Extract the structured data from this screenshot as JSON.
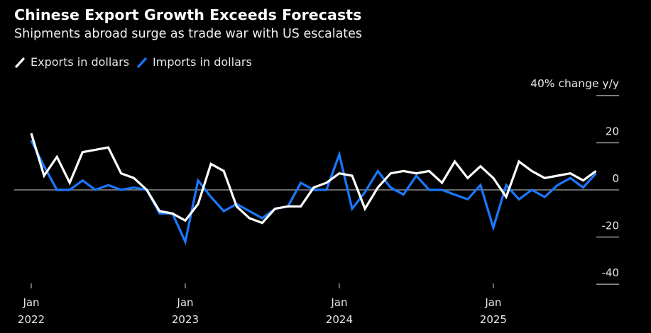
{
  "chart_data": {
    "type": "line",
    "title": "Chinese Export Growth Exceeds Forecasts",
    "subtitle": "Shipments abroad surge as trade war with US escalates",
    "ylabel": "40% change y/y",
    "xlabel": "",
    "ylim": [
      -40,
      40
    ],
    "yticks": [
      {
        "value": 40,
        "label": ""
      },
      {
        "value": 20,
        "label": "20"
      },
      {
        "value": 0,
        "label": "0"
      },
      {
        "value": -20,
        "label": "-20"
      },
      {
        "value": -40,
        "label": "-40"
      }
    ],
    "xticks": [
      {
        "month_index": 0,
        "line1": "Jan",
        "line2": "2022"
      },
      {
        "month_index": 12,
        "line1": "Jan",
        "line2": "2023"
      },
      {
        "month_index": 24,
        "line1": "Jan",
        "line2": "2024"
      },
      {
        "month_index": 36,
        "line1": "Jan",
        "line2": "2025"
      }
    ],
    "x_start": "2022-01",
    "x_unit": "month",
    "grid": false,
    "zero_line": true,
    "legend_position": "top-left",
    "series": [
      {
        "name": "Exports in dollars",
        "color": "#ffffff",
        "values": [
          24,
          6,
          14,
          3,
          16,
          17,
          18,
          7,
          5,
          0,
          -9,
          -10,
          -13,
          -6,
          11,
          8,
          -7,
          -12,
          -14,
          -8,
          -7,
          -7,
          1,
          3,
          7,
          6,
          -8,
          1,
          7,
          8,
          7,
          8,
          3,
          12,
          5,
          10,
          5,
          -3,
          12,
          8,
          5,
          6,
          7,
          4,
          8
        ]
      },
      {
        "name": "Imports in dollars",
        "color": "#1a78ff",
        "values": [
          21,
          10,
          0,
          0,
          4,
          0,
          2,
          0,
          1,
          0,
          -10,
          -10,
          -22,
          4,
          -3,
          -9,
          -6,
          -9,
          -12,
          -8,
          -7,
          3,
          0,
          0,
          15,
          -8,
          -1,
          8,
          1,
          -2,
          6,
          0,
          0,
          -2,
          -4,
          2,
          -16,
          2,
          -4,
          0,
          -3,
          2,
          5,
          1,
          7
        ]
      }
    ]
  }
}
